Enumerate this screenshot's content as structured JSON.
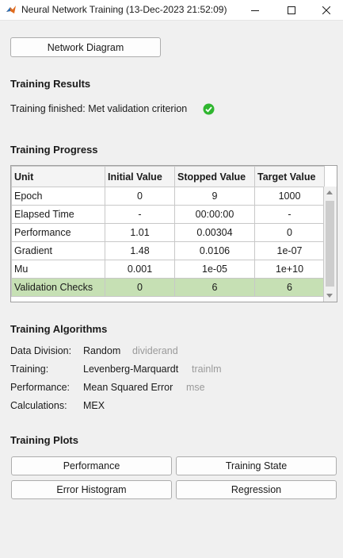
{
  "window": {
    "title": "Neural Network Training (13-Dec-2023 21:52:09)",
    "icons": [
      "matlab-icon",
      "minimize-icon",
      "maximize-icon",
      "close-icon"
    ]
  },
  "network_diagram_label": "Network Diagram",
  "results": {
    "heading": "Training Results",
    "status": "Training finished: Met validation criterion",
    "status_icon": "check-circle-icon",
    "status_color": "#2fb62f"
  },
  "progress": {
    "heading": "Training Progress",
    "columns": [
      "Unit",
      "Initial Value",
      "Stopped Value",
      "Target Value"
    ],
    "rows": [
      {
        "unit": "Epoch",
        "initial": "0",
        "stopped": "9",
        "target": "1000"
      },
      {
        "unit": "Elapsed Time",
        "initial": "-",
        "stopped": "00:00:00",
        "target": "-"
      },
      {
        "unit": "Performance",
        "initial": "1.01",
        "stopped": "0.00304",
        "target": "0"
      },
      {
        "unit": "Gradient",
        "initial": "1.48",
        "stopped": "0.0106",
        "target": "1e-07"
      },
      {
        "unit": "Mu",
        "initial": "0.001",
        "stopped": "1e-05",
        "target": "1e+10"
      },
      {
        "unit": "Validation Checks",
        "initial": "0",
        "stopped": "6",
        "target": "6"
      }
    ],
    "highlight_color": "#c6e0b4"
  },
  "algorithms": {
    "heading": "Training Algorithms",
    "items": [
      {
        "label": "Data Division:",
        "value": "Random",
        "fn": "dividerand"
      },
      {
        "label": "Training:",
        "value": "Levenberg-Marquardt",
        "fn": "trainlm"
      },
      {
        "label": "Performance:",
        "value": "Mean Squared Error",
        "fn": "mse"
      },
      {
        "label": "Calculations:",
        "value": "MEX",
        "fn": ""
      }
    ]
  },
  "plots": {
    "heading": "Training Plots",
    "buttons": [
      "Performance",
      "Training State",
      "Error Histogram",
      "Regression"
    ]
  }
}
